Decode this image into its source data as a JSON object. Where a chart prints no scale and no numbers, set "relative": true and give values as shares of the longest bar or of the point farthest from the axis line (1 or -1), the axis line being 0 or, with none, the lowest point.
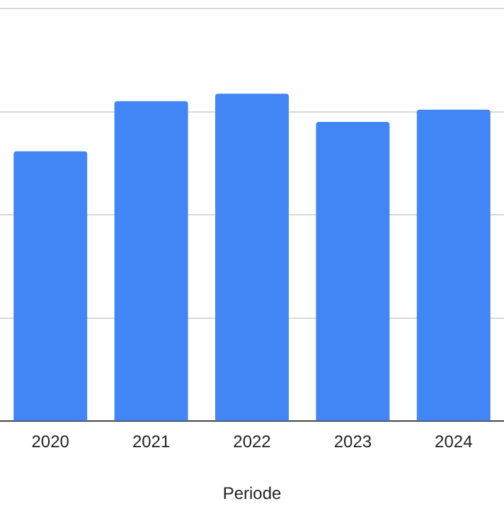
{
  "chart_data": {
    "type": "bar",
    "xlabel": "Periode",
    "categories": [
      "2020",
      "2021",
      "2022",
      "2023",
      "2024"
    ],
    "values": [
      0.824,
      0.977,
      1,
      0.914,
      0.951
    ],
    "color": "#4285f4",
    "relative": true,
    "grid": "y"
  }
}
